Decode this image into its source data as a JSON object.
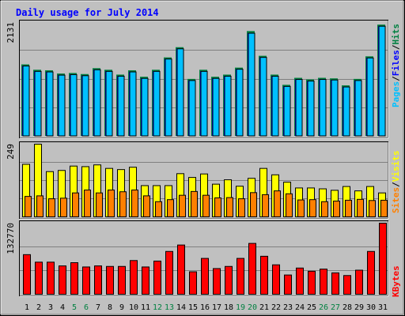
{
  "chart_data": {
    "title": "Daily usage for July 2014",
    "type": "bar",
    "days": [
      "1",
      "2",
      "3",
      "4",
      "5",
      "6",
      "7",
      "8",
      "9",
      "10",
      "11",
      "12",
      "13",
      "14",
      "15",
      "16",
      "17",
      "18",
      "19",
      "20",
      "21",
      "22",
      "23",
      "24",
      "25",
      "26",
      "27",
      "28",
      "29",
      "30",
      "31"
    ],
    "weekend_days": [
      "5",
      "6",
      "12",
      "13",
      "19",
      "20",
      "26",
      "27"
    ],
    "panels": [
      {
        "name": "hits-files-pages",
        "ymax_label": "2131",
        "ymax": 2131,
        "grid": true,
        "right_label": [
          {
            "text": "Pages",
            "color": "#00c0ff"
          },
          {
            "text": "/",
            "color": "#000000"
          },
          {
            "text": "Files",
            "color": "#0000ff"
          },
          {
            "text": "/",
            "color": "#000000"
          },
          {
            "text": "Hits",
            "color": "#008040"
          }
        ],
        "series": [
          {
            "name": "Hits",
            "color": "#008040",
            "values": [
              1330,
              1230,
              1220,
              1160,
              1170,
              1150,
              1260,
              1230,
              1140,
              1220,
              1100,
              1230,
              1460,
              1650,
              1060,
              1230,
              1100,
              1140,
              1270,
              1950,
              1490,
              1140,
              950,
              1080,
              1050,
              1080,
              1070,
              940,
              1060,
              1480,
              2070
            ]
          },
          {
            "name": "Files",
            "color": "#0000ff",
            "values": [
              1300,
              1200,
              1190,
              1130,
              1140,
              1120,
              1230,
              1200,
              1110,
              1190,
              1070,
              1200,
              1430,
              1620,
              1030,
              1200,
              1070,
              1110,
              1240,
              1910,
              1460,
              1110,
              920,
              1050,
              1020,
              1050,
              1040,
              910,
              1030,
              1450,
              2040
            ]
          },
          {
            "name": "Pages",
            "color": "#00c0ff",
            "values": [
              1300,
              1200,
              1190,
              1130,
              1140,
              1120,
              1230,
              1200,
              1110,
              1190,
              1070,
              1200,
              1430,
              1620,
              1030,
              1200,
              1070,
              1110,
              1240,
              1910,
              1460,
              1110,
              920,
              1050,
              1020,
              1050,
              1040,
              910,
              1030,
              1450,
              2040
            ]
          }
        ]
      },
      {
        "name": "visits-sites",
        "ymax_label": "249",
        "ymax": 249,
        "grid": true,
        "right_label": [
          {
            "text": "Sites",
            "color": "#ff8000"
          },
          {
            "text": "/",
            "color": "#000000"
          },
          {
            "text": "Visits",
            "color": "#ffff00"
          }
        ],
        "series": [
          {
            "name": "Visits",
            "color": "#ffff00",
            "values": [
              180,
              249,
              155,
              159,
              174,
              172,
              178,
              166,
              162,
              170,
              107,
              107,
              107,
              148,
              135,
              147,
              112,
              127,
              105,
              132,
              166,
              144,
              119,
              99,
              99,
              96,
              91,
              104,
              89,
              104,
              82
            ]
          },
          {
            "name": "Sites",
            "color": "#ff8000",
            "values": [
              70,
              72,
              62,
              64,
              82,
              92,
              82,
              92,
              86,
              92,
              72,
              52,
              59,
              74,
              87,
              74,
              65,
              66,
              62,
              83,
              76,
              89,
              79,
              58,
              59,
              52,
              54,
              57,
              60,
              56,
              57
            ]
          }
        ]
      },
      {
        "name": "kbytes",
        "ymax_label": "132770",
        "ymax": 132770,
        "grid": true,
        "right_label": [
          {
            "text": "KBytes",
            "color": "#ff0000"
          }
        ],
        "series": [
          {
            "name": "KBytes",
            "color": "#ff0000",
            "values": [
              74000,
              60000,
              60000,
              53000,
              59000,
              51000,
              53000,
              52000,
              52000,
              63000,
              51000,
              62000,
              80000,
              92000,
              42000,
              67000,
              48000,
              52000,
              67000,
              95000,
              71000,
              55000,
              36000,
              49000,
              43000,
              47000,
              40000,
              35000,
              45000,
              80000,
              132770
            ]
          }
        ]
      }
    ]
  },
  "colors": {
    "background": "#c0c0c0",
    "title": "#0000ff",
    "weekend_label": "#008040",
    "weekday_label": "#000000"
  }
}
